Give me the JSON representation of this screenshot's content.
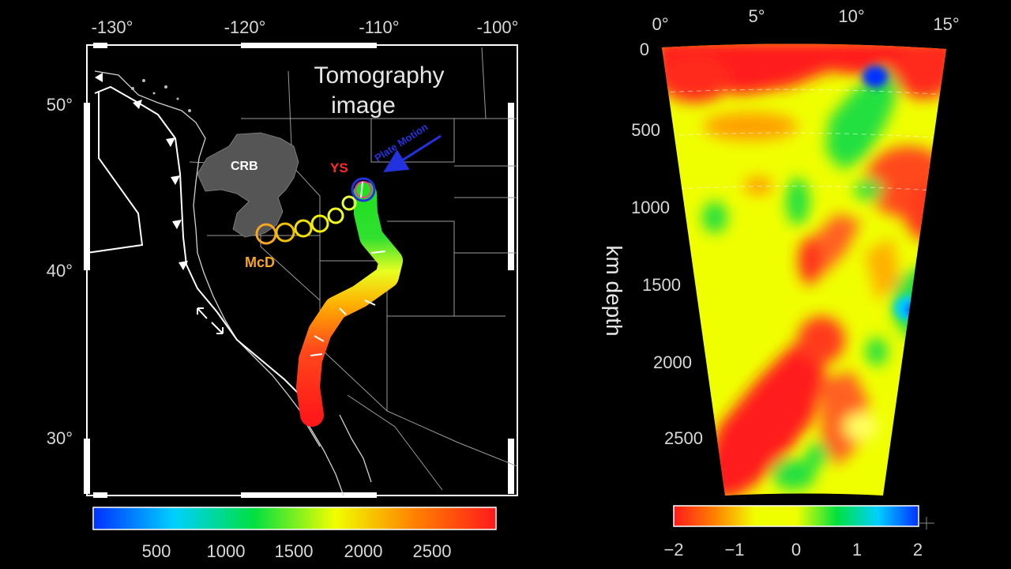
{
  "map": {
    "title_line1": "Tomography",
    "title_line2": "image",
    "lon_ticks": [
      "-130°",
      "-120°",
      "-110°",
      "-100°"
    ],
    "lat_ticks": [
      "50°",
      "40°",
      "30°"
    ],
    "labels": {
      "crb": "CRB",
      "ys": "YS",
      "mcd": "McD",
      "plate_motion": "Plate Motion"
    },
    "colors": {
      "crb_fill": "#555555",
      "ys": "#ff2a2a",
      "mcd": "#f5a623",
      "plate_motion": "#2233dd"
    },
    "colorbar": {
      "ticks": [
        "500",
        "1000",
        "1500",
        "2000",
        "2500"
      ],
      "stops": [
        "#0030ff",
        "#00d0ff",
        "#00e040",
        "#f0ff00",
        "#ff8000",
        "#ff1a1a"
      ]
    }
  },
  "section": {
    "angle_ticks": [
      "0°",
      "5°",
      "10°",
      "15°"
    ],
    "depth_ticks": [
      "0",
      "500",
      "1000",
      "1500",
      "2000",
      "2500"
    ],
    "ylabel": "km depth",
    "colorbar": {
      "ticks": [
        "−2",
        "−1",
        "0",
        "1",
        "2"
      ],
      "stops": [
        "#ff1a1a",
        "#ff8000",
        "#f0ff00",
        "#f0ff00",
        "#00e040",
        "#00d0ff",
        "#0030ff"
      ]
    }
  }
}
